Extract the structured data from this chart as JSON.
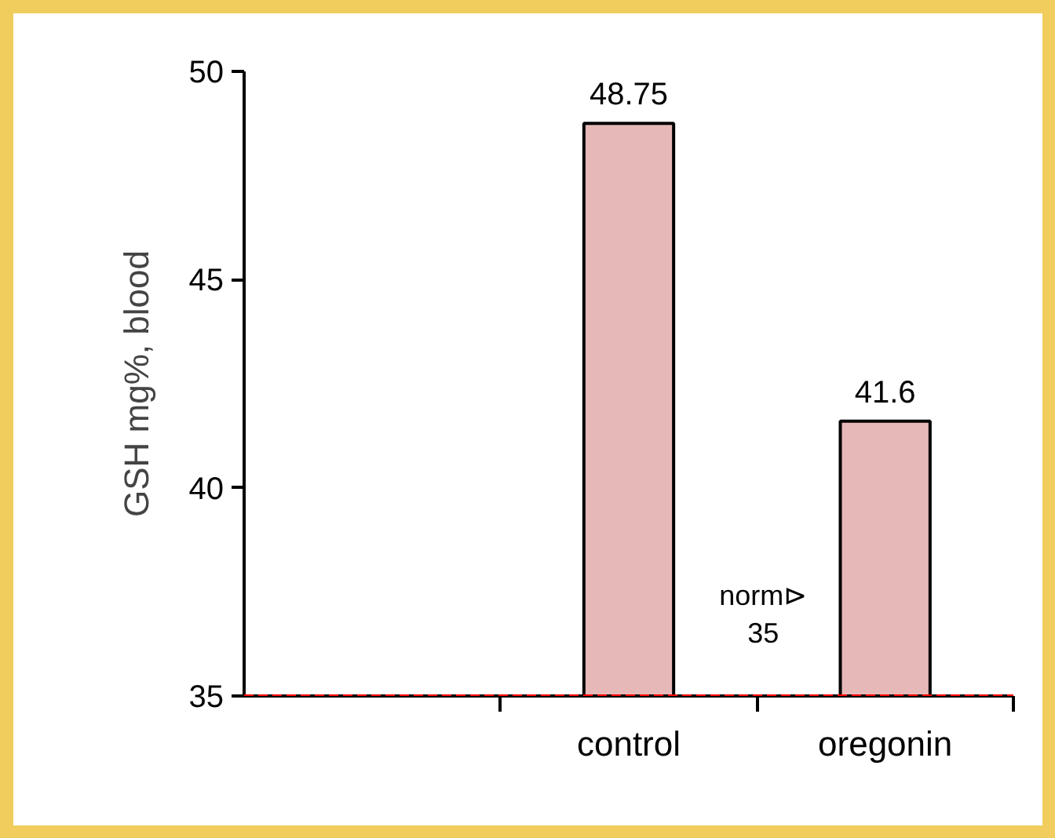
{
  "chart_data": {
    "type": "bar",
    "ylabel": "GSH mg%, blood",
    "categories": [
      null,
      "control",
      "oregonin"
    ],
    "values": [
      null,
      48.75,
      41.6
    ],
    "color": "#e6b8b7",
    "ylim": [
      35,
      50
    ],
    "yticks": [
      35,
      40,
      45,
      50
    ],
    "data_labels": true,
    "grid": false,
    "ref_lines": [
      {
        "axis": "y",
        "value": 35,
        "label": "norm⊳\n35",
        "color": "#ff0000",
        "line_style": "dashed"
      }
    ]
  }
}
